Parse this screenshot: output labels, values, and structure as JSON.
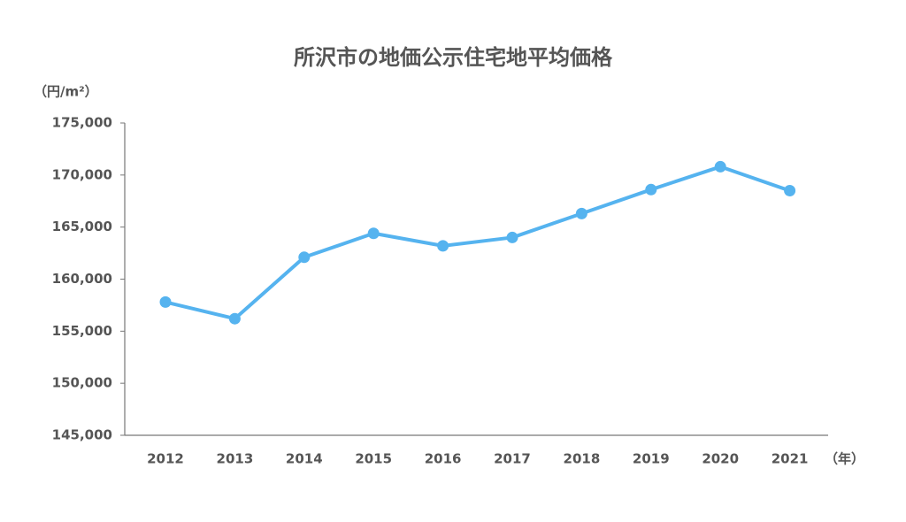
{
  "chart_data": {
    "type": "line",
    "title": "所沢市の地価公示住宅地平均価格",
    "y_unit": "（円/m²）",
    "x_unit": "（年）",
    "categories": [
      "2012",
      "2013",
      "2014",
      "2015",
      "2016",
      "2017",
      "2018",
      "2019",
      "2020",
      "2021"
    ],
    "values": [
      157800,
      156200,
      162100,
      164400,
      163200,
      164000,
      166300,
      168600,
      170800,
      168500
    ],
    "color": "#55b3ef",
    "ylim": [
      145000,
      175000
    ],
    "yticks": [
      {
        "value": 145000,
        "label": "145,000"
      },
      {
        "value": 150000,
        "label": "150,000"
      },
      {
        "value": 155000,
        "label": "155,000"
      },
      {
        "value": 160000,
        "label": "160,000"
      },
      {
        "value": 165000,
        "label": "165,000"
      },
      {
        "value": 170000,
        "label": "170,000"
      },
      {
        "value": 175000,
        "label": "175,000"
      }
    ],
    "grid": false
  }
}
